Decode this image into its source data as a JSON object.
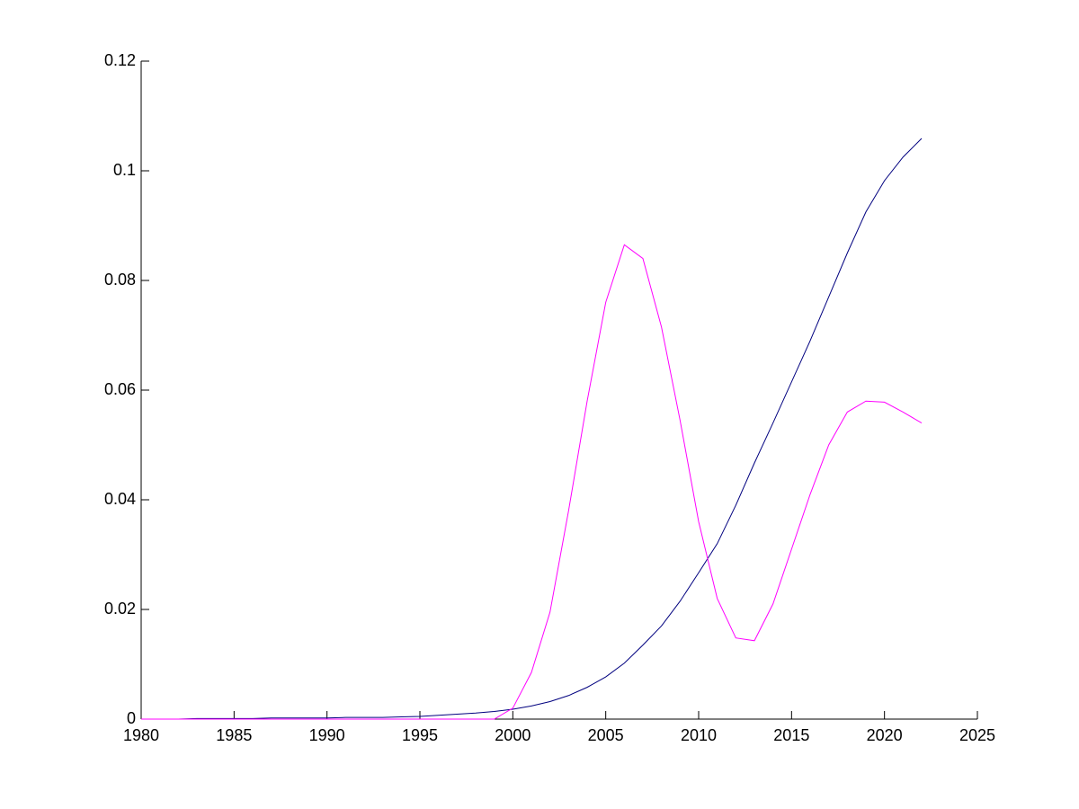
{
  "chart_data": {
    "type": "line",
    "x": [
      1980,
      1981,
      1982,
      1983,
      1984,
      1985,
      1986,
      1987,
      1988,
      1989,
      1990,
      1991,
      1992,
      1993,
      1994,
      1995,
      1996,
      1997,
      1998,
      1999,
      2000,
      2001,
      2002,
      2003,
      2004,
      2005,
      2006,
      2007,
      2008,
      2009,
      2010,
      2011,
      2012,
      2013,
      2014,
      2015,
      2016,
      2017,
      2018,
      2019,
      2020,
      2021,
      2022
    ],
    "series": [
      {
        "color": "#00007f",
        "values": [
          0,
          0,
          0,
          0.0001,
          0.0001,
          0.0001,
          0.0001,
          0.0002,
          0.0002,
          0.0002,
          0.0002,
          0.0003,
          0.0003,
          0.0003,
          0.0004,
          0.0005,
          0.0007,
          0.0009,
          0.0011,
          0.0014,
          0.0018,
          0.0024,
          0.0032,
          0.0043,
          0.0058,
          0.0077,
          0.0102,
          0.0135,
          0.017,
          0.0215,
          0.0267,
          0.032,
          0.039,
          0.0467,
          0.054,
          0.0615,
          0.069,
          0.077,
          0.085,
          0.0925,
          0.0982,
          0.1025,
          0.1059
        ]
      },
      {
        "color": "#ff00ff",
        "values": [
          0,
          0,
          0,
          0,
          0,
          0,
          0,
          0,
          0,
          0,
          0,
          0,
          0,
          0,
          0,
          0,
          0,
          0,
          0,
          0,
          0.002,
          0.0085,
          0.0195,
          0.038,
          0.058,
          0.076,
          0.0865,
          0.084,
          0.0715,
          0.0545,
          0.036,
          0.022,
          0.0148,
          0.0143,
          0.021,
          0.031,
          0.041,
          0.05,
          0.056,
          0.058,
          0.0578,
          0.056,
          0.054
        ]
      }
    ],
    "xlim": [
      1980,
      2025
    ],
    "xticks": [
      1980,
      1985,
      1990,
      1995,
      2000,
      2005,
      2010,
      2015,
      2020,
      2025
    ],
    "ylim": [
      0,
      0.12
    ],
    "yticks": [
      0,
      0.02,
      0.04,
      0.06,
      0.08,
      0.1,
      0.12
    ]
  }
}
